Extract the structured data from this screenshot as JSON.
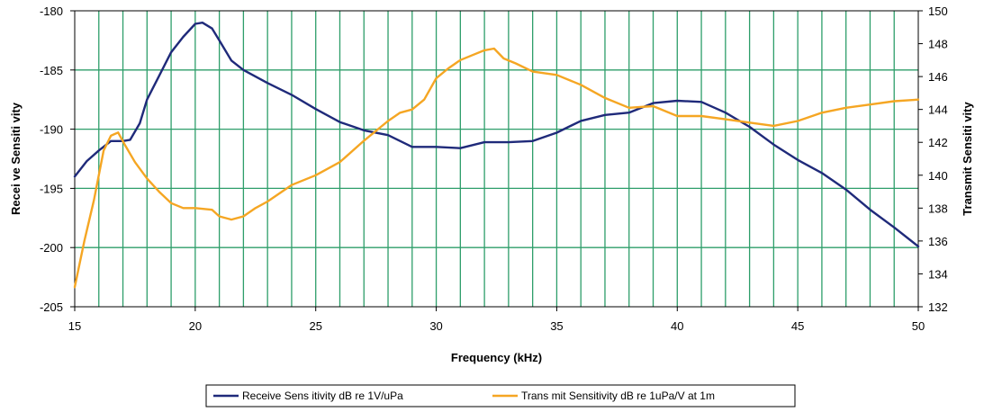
{
  "chart_data": {
    "type": "line",
    "xlabel": "Frequency (kHz)",
    "ylabel": "Recei ve Sensiti vity",
    "y2label": "Transmit Sensiti vity",
    "xlim": [
      15,
      50
    ],
    "ylim": [
      -205,
      -180
    ],
    "y2lim": [
      132,
      150
    ],
    "xticks": [
      "15",
      "20",
      "25",
      "30",
      "35",
      "40",
      "45",
      "50"
    ],
    "yticks": [
      "-180",
      "-185",
      "-190",
      "-195",
      "-200",
      "-205"
    ],
    "y2ticks": [
      "150",
      "148",
      "146",
      "144",
      "142",
      "140",
      "138",
      "136",
      "134",
      "132"
    ],
    "grid": "vertical every 1 kHz, horizontal at major left ticks",
    "legend_position": "bottom-center",
    "colors": {
      "plot_bg": "#ffffff",
      "grid": "#2e9e6a",
      "receive": "#1f2a7a",
      "transmit": "#f5a623"
    },
    "series": [
      {
        "name": "Receive Sens itivity dB re 1V/uPa",
        "axis": "left",
        "x": [
          15,
          15.5,
          16,
          16.5,
          17,
          17.3,
          17.7,
          18,
          18.5,
          19,
          19.5,
          20,
          20.3,
          20.7,
          21,
          21.5,
          22,
          23,
          24,
          25,
          26,
          27,
          28,
          29,
          30,
          31,
          32,
          33,
          34,
          35,
          36,
          37,
          38,
          39,
          40,
          41,
          42,
          43,
          44,
          45,
          46,
          47,
          48,
          49,
          50
        ],
        "values": [
          -194.0,
          -192.7,
          -191.8,
          -191.0,
          -191.0,
          -190.9,
          -189.5,
          -187.5,
          -185.5,
          -183.5,
          -182.2,
          -181.1,
          -181.0,
          -181.5,
          -182.5,
          -184.2,
          -185.0,
          -186.1,
          -187.1,
          -188.3,
          -189.4,
          -190.1,
          -190.5,
          -191.5,
          -191.5,
          -191.6,
          -191.1,
          -191.1,
          -191.0,
          -190.3,
          -189.3,
          -188.8,
          -188.6,
          -187.8,
          -187.6,
          -187.7,
          -188.6,
          -189.8,
          -191.3,
          -192.6,
          -193.7,
          -195.1,
          -196.8,
          -198.3,
          -199.9
        ]
      },
      {
        "name": "Trans mit Sensitivity dB re 1uPa/V at 1m",
        "axis": "right",
        "x": [
          15,
          15.4,
          15.8,
          16.2,
          16.5,
          16.8,
          17.1,
          17.5,
          18,
          18.5,
          19,
          19.5,
          20,
          20.7,
          21,
          21.5,
          22,
          22.5,
          23,
          24,
          25,
          26,
          27,
          28,
          28.5,
          29,
          29.5,
          30,
          30.5,
          31,
          31.5,
          32,
          32.4,
          32.8,
          33.3,
          34,
          35,
          36,
          37,
          38,
          39,
          40,
          41,
          42,
          43,
          44,
          45,
          46,
          47,
          48,
          49,
          50
        ],
        "values": [
          133.2,
          136.0,
          138.5,
          141.5,
          142.4,
          142.6,
          141.8,
          140.8,
          139.8,
          139.0,
          138.3,
          138.0,
          138.0,
          137.9,
          137.5,
          137.3,
          137.5,
          138.0,
          138.4,
          139.4,
          140.0,
          140.8,
          142.1,
          143.3,
          143.8,
          144.0,
          144.6,
          145.9,
          146.5,
          147.0,
          147.3,
          147.6,
          147.7,
          147.1,
          146.8,
          146.3,
          146.1,
          145.5,
          144.7,
          144.1,
          144.2,
          143.6,
          143.6,
          143.4,
          143.2,
          143.0,
          143.3,
          143.8,
          144.1,
          144.3,
          144.5,
          144.6
        ]
      }
    ]
  }
}
